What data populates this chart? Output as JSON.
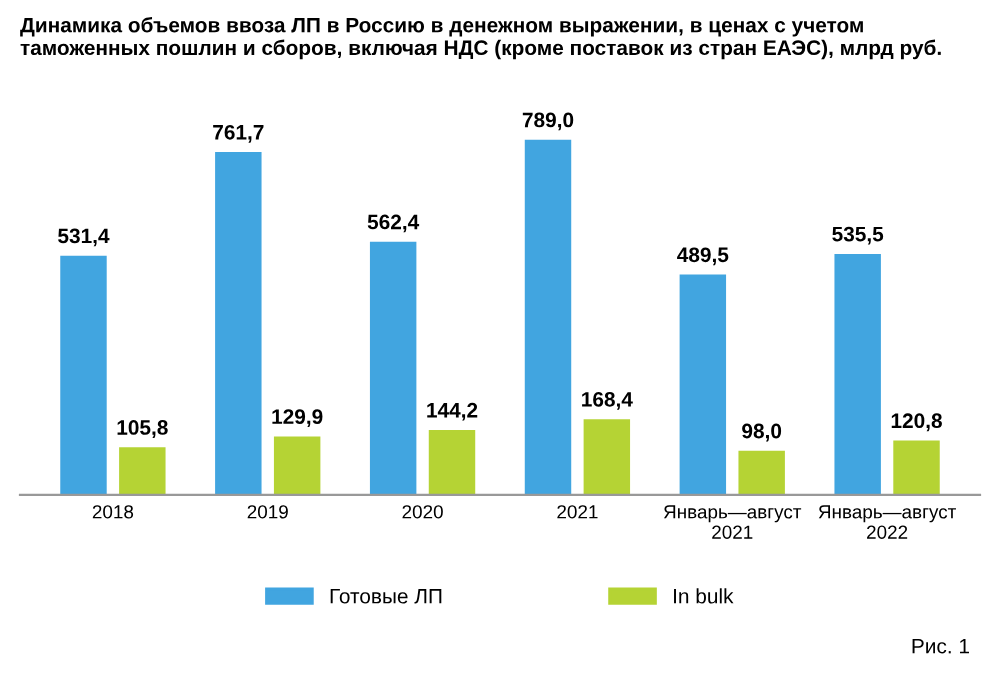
{
  "chart_data": {
    "type": "bar",
    "title": "Динамика объемов ввоза ЛП в Россию в денежном выражении, в ценах с учетом таможенных пошлин и сборов, включая НДС (кроме поставок из стран ЕАЭС), млрд руб.",
    "categories": [
      "2018",
      "2019",
      "2020",
      "2021",
      "Январь—август\n2021",
      "Январь—август\n2022"
    ],
    "series": [
      {
        "name": "Готовые ЛП",
        "color": "#41a5e0",
        "values": [
          531.4,
          761.7,
          562.4,
          789.0,
          489.5,
          535.5
        ],
        "value_labels": [
          "531,4",
          "761,7",
          "562,4",
          "789,0",
          "489,5",
          "535,5"
        ]
      },
      {
        "name": "In bulk",
        "color": "#b5d334",
        "values": [
          105.8,
          129.9,
          144.2,
          168.4,
          98.0,
          120.8
        ],
        "value_labels": [
          "105,8",
          "129,9",
          "144,2",
          "168,4",
          "98,0",
          "120,8"
        ]
      }
    ],
    "legend": "bottom",
    "grid": false,
    "annotations": [
      "Рис. 1"
    ]
  }
}
